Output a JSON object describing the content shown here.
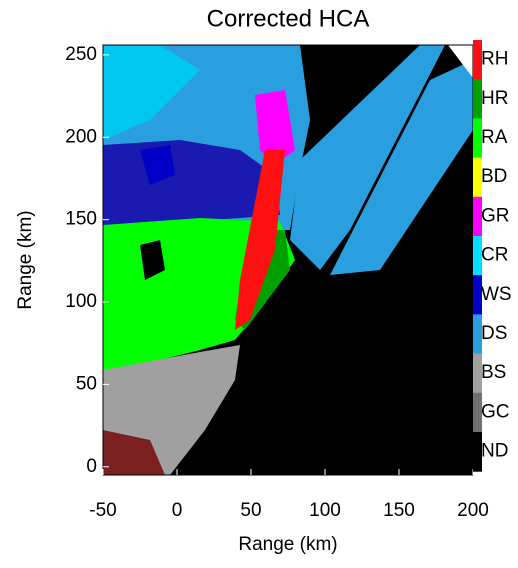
{
  "chart_data": {
    "type": "image",
    "title": "Corrected HCA",
    "x_label": "Range (km)",
    "y_label": "Range (km)",
    "xlim": [
      -50,
      200
    ],
    "ylim": [
      -5,
      256
    ],
    "xticks": [
      -50,
      0,
      50,
      100,
      150,
      200
    ],
    "yticks": [
      0,
      50,
      100,
      150,
      200,
      250
    ],
    "colorbar": {
      "labels": [
        "RH",
        "HR",
        "RA",
        "BD",
        "GR",
        "CR",
        "WS",
        "DS",
        "BS",
        "GC",
        "ND"
      ],
      "colors": [
        "#ff1010",
        "#00a000",
        "#00ff00",
        "#ffff00",
        "#ff00ff",
        "#00e0ff",
        "#0000c8",
        "#2a9fe0",
        "#a0a0a0",
        "#707070",
        "#000000"
      ]
    }
  }
}
